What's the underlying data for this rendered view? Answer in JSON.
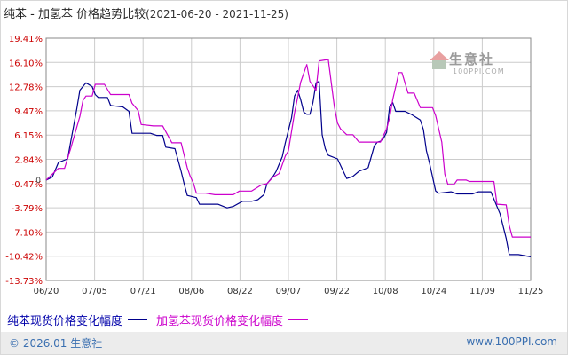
{
  "title": {
    "main": "纯苯 - 加氢苯 价格趋势比较",
    "dates": "(2021-06-20 - 2021-11-25)"
  },
  "watermark": {
    "brand": "生意社",
    "url": "100PPI.COM"
  },
  "legend": {
    "series1_label": "纯苯现货价格变化幅度",
    "series2_label": "加氢苯现货价格变化幅度"
  },
  "footer": {
    "copyright": "© 2026.01 生意社",
    "url": "www.100PPI.com"
  },
  "colors": {
    "series1": "#00008b",
    "series2": "#cc00cc",
    "axis_label": "#cc0000",
    "grid": "#cccccc"
  },
  "chart_data": {
    "type": "line",
    "y_unit": "%",
    "ylim": [
      -13.73,
      19.41
    ],
    "y_ticks": [
      "19.41%",
      "16.10%",
      "12.78%",
      "9.47%",
      "6.15%",
      "2.84%",
      "-0.47%",
      "-3.79%",
      "-7.10%",
      "-10.42%",
      "-13.73%"
    ],
    "x_ticks": [
      "06/20",
      "07/05",
      "07/21",
      "08/06",
      "08/22",
      "09/07",
      "09/22",
      "10/08",
      "10/24",
      "11/09",
      "11/25"
    ],
    "x_range": [
      "2021-06-20",
      "2021-11-25"
    ],
    "grid": true,
    "series": [
      {
        "name": "纯苯现货价格变化幅度",
        "points": [
          [
            "2021-06-20",
            0.0
          ],
          [
            "2021-06-22",
            0.4
          ],
          [
            "2021-06-24",
            2.4
          ],
          [
            "2021-06-27",
            2.9
          ],
          [
            "2021-06-28",
            5.2
          ],
          [
            "2021-06-30",
            9.8
          ],
          [
            "2021-07-01",
            12.3
          ],
          [
            "2021-07-03",
            13.3
          ],
          [
            "2021-07-05",
            12.8
          ],
          [
            "2021-07-06",
            11.7
          ],
          [
            "2021-07-07",
            11.3
          ],
          [
            "2021-07-10",
            11.3
          ],
          [
            "2021-07-11",
            10.2
          ],
          [
            "2021-07-15",
            10.0
          ],
          [
            "2021-07-17",
            9.4
          ],
          [
            "2021-07-18",
            6.4
          ],
          [
            "2021-07-24",
            6.4
          ],
          [
            "2021-07-26",
            6.1
          ],
          [
            "2021-07-28",
            6.1
          ],
          [
            "2021-07-29",
            4.5
          ],
          [
            "2021-08-01",
            4.3
          ],
          [
            "2021-08-03",
            1.2
          ],
          [
            "2021-08-04",
            -0.5
          ],
          [
            "2021-08-05",
            -2.1
          ],
          [
            "2021-08-08",
            -2.4
          ],
          [
            "2021-08-09",
            -3.3
          ],
          [
            "2021-08-15",
            -3.3
          ],
          [
            "2021-08-18",
            -3.8
          ],
          [
            "2021-08-20",
            -3.6
          ],
          [
            "2021-08-23",
            -2.9
          ],
          [
            "2021-08-26",
            -2.9
          ],
          [
            "2021-08-28",
            -2.7
          ],
          [
            "2021-08-30",
            -2.0
          ],
          [
            "2021-08-31",
            -0.5
          ],
          [
            "2021-09-02",
            0.5
          ],
          [
            "2021-09-03",
            1.2
          ],
          [
            "2021-09-05",
            3.2
          ],
          [
            "2021-09-06",
            5.1
          ],
          [
            "2021-09-08",
            8.5
          ],
          [
            "2021-09-09",
            11.5
          ],
          [
            "2021-09-10",
            12.3
          ],
          [
            "2021-09-11",
            11.0
          ],
          [
            "2021-09-12",
            9.3
          ],
          [
            "2021-09-13",
            9.0
          ],
          [
            "2021-09-14",
            9.0
          ],
          [
            "2021-09-15",
            10.6
          ],
          [
            "2021-09-16",
            13.3
          ],
          [
            "2021-09-17",
            13.5
          ],
          [
            "2021-09-18",
            6.2
          ],
          [
            "2021-09-19",
            4.3
          ],
          [
            "2021-09-20",
            3.4
          ],
          [
            "2021-09-23",
            2.9
          ],
          [
            "2021-09-26",
            0.2
          ],
          [
            "2021-09-28",
            0.5
          ],
          [
            "2021-09-30",
            1.2
          ],
          [
            "2021-10-03",
            1.7
          ],
          [
            "2021-10-05",
            4.7
          ],
          [
            "2021-10-06",
            5.2
          ],
          [
            "2021-10-07",
            5.3
          ],
          [
            "2021-10-08",
            5.7
          ],
          [
            "2021-10-09",
            6.5
          ],
          [
            "2021-10-10",
            10.0
          ],
          [
            "2021-10-11",
            10.6
          ],
          [
            "2021-10-12",
            9.4
          ],
          [
            "2021-10-15",
            9.4
          ],
          [
            "2021-10-17",
            9.0
          ],
          [
            "2021-10-20",
            8.2
          ],
          [
            "2021-10-21",
            6.9
          ],
          [
            "2021-10-22",
            4.0
          ],
          [
            "2021-10-23",
            2.3
          ],
          [
            "2021-10-25",
            -1.5
          ],
          [
            "2021-10-26",
            -1.8
          ],
          [
            "2021-10-30",
            -1.6
          ],
          [
            "2021-11-01",
            -1.9
          ],
          [
            "2021-11-06",
            -1.9
          ],
          [
            "2021-11-08",
            -1.6
          ],
          [
            "2021-11-12",
            -1.6
          ],
          [
            "2021-11-15",
            -4.6
          ],
          [
            "2021-11-17",
            -8.0
          ],
          [
            "2021-11-18",
            -10.2
          ],
          [
            "2021-11-21",
            -10.2
          ],
          [
            "2021-11-25",
            -10.5
          ]
        ]
      },
      {
        "name": "加氢苯现货价格变化幅度",
        "points": [
          [
            "2021-06-20",
            0.0
          ],
          [
            "2021-06-21",
            0.4
          ],
          [
            "2021-06-24",
            1.6
          ],
          [
            "2021-06-26",
            1.6
          ],
          [
            "2021-06-28",
            4.3
          ],
          [
            "2021-07-01",
            8.7
          ],
          [
            "2021-07-02",
            10.9
          ],
          [
            "2021-07-03",
            11.5
          ],
          [
            "2021-07-05",
            11.5
          ],
          [
            "2021-07-06",
            13.1
          ],
          [
            "2021-07-09",
            13.1
          ],
          [
            "2021-07-11",
            11.7
          ],
          [
            "2021-07-17",
            11.7
          ],
          [
            "2021-07-18",
            10.5
          ],
          [
            "2021-07-20",
            9.5
          ],
          [
            "2021-07-21",
            7.6
          ],
          [
            "2021-07-25",
            7.4
          ],
          [
            "2021-07-28",
            7.4
          ],
          [
            "2021-07-31",
            5.1
          ],
          [
            "2021-08-03",
            5.1
          ],
          [
            "2021-08-05",
            1.7
          ],
          [
            "2021-08-06",
            0.5
          ],
          [
            "2021-08-07",
            -0.4
          ],
          [
            "2021-08-08",
            -1.8
          ],
          [
            "2021-08-11",
            -1.8
          ],
          [
            "2021-08-14",
            -2.0
          ],
          [
            "2021-08-20",
            -2.0
          ],
          [
            "2021-08-22",
            -1.5
          ],
          [
            "2021-08-26",
            -1.5
          ],
          [
            "2021-08-29",
            -0.7
          ],
          [
            "2021-08-31",
            -0.5
          ],
          [
            "2021-09-02",
            0.4
          ],
          [
            "2021-09-04",
            0.9
          ],
          [
            "2021-09-06",
            3.3
          ],
          [
            "2021-09-07",
            4.0
          ],
          [
            "2021-09-09",
            9.2
          ],
          [
            "2021-09-11",
            13.4
          ],
          [
            "2021-09-13",
            15.8
          ],
          [
            "2021-09-14",
            13.5
          ],
          [
            "2021-09-16",
            12.3
          ],
          [
            "2021-09-17",
            16.3
          ],
          [
            "2021-09-20",
            16.5
          ],
          [
            "2021-09-22",
            10.0
          ],
          [
            "2021-09-23",
            7.8
          ],
          [
            "2021-09-24",
            7.0
          ],
          [
            "2021-09-26",
            6.2
          ],
          [
            "2021-09-28",
            6.2
          ],
          [
            "2021-09-30",
            5.2
          ],
          [
            "2021-10-07",
            5.2
          ],
          [
            "2021-10-08",
            6.1
          ],
          [
            "2021-10-09",
            7.0
          ],
          [
            "2021-10-10",
            8.5
          ],
          [
            "2021-10-11",
            11.0
          ],
          [
            "2021-10-12",
            12.8
          ],
          [
            "2021-10-13",
            14.7
          ],
          [
            "2021-10-14",
            14.7
          ],
          [
            "2021-10-16",
            11.9
          ],
          [
            "2021-10-18",
            11.9
          ],
          [
            "2021-10-20",
            9.9
          ],
          [
            "2021-10-24",
            9.9
          ],
          [
            "2021-10-25",
            8.8
          ],
          [
            "2021-10-27",
            5.2
          ],
          [
            "2021-10-28",
            0.8
          ],
          [
            "2021-10-29",
            -0.6
          ],
          [
            "2021-10-31",
            -0.6
          ],
          [
            "2021-11-01",
            0.0
          ],
          [
            "2021-11-04",
            0.0
          ],
          [
            "2021-11-05",
            -0.2
          ],
          [
            "2021-11-13",
            -0.2
          ],
          [
            "2021-11-14",
            -3.3
          ],
          [
            "2021-11-17",
            -3.4
          ],
          [
            "2021-11-18",
            -6.2
          ],
          [
            "2021-11-19",
            -7.8
          ],
          [
            "2021-11-25",
            -7.8
          ]
        ]
      }
    ]
  }
}
